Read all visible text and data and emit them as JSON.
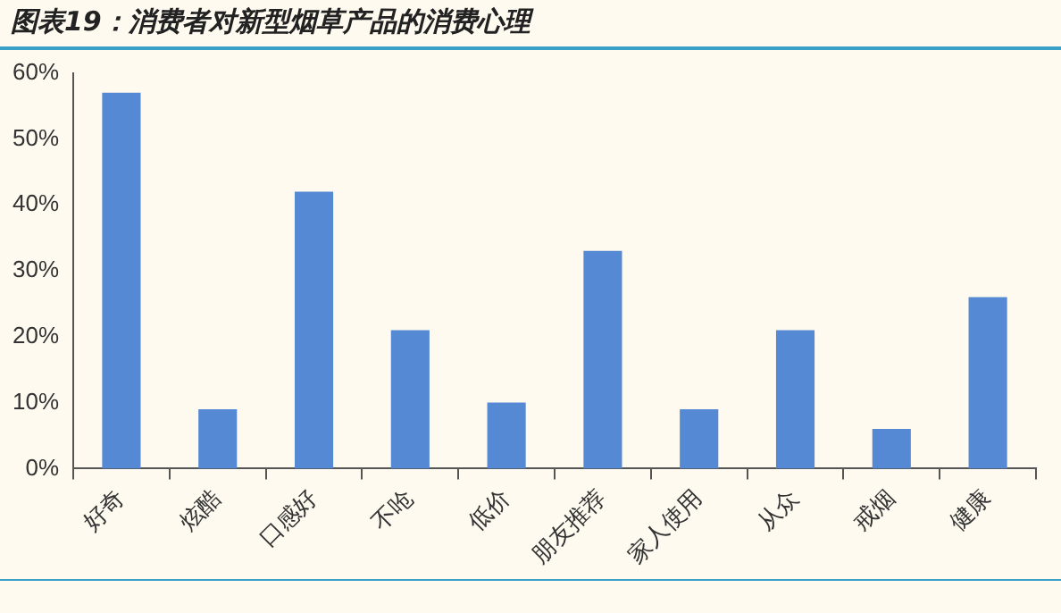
{
  "chart_data": {
    "type": "bar",
    "title": "图表19：消费者对新型烟草产品的消费心理",
    "categories": [
      "好奇",
      "炫酷",
      "口感好",
      "不呛",
      "低价",
      "朋友推荐",
      "家人使用",
      "从众",
      "戒烟",
      "健康"
    ],
    "values": [
      57,
      9,
      42,
      21,
      10,
      33,
      9,
      21,
      6,
      26
    ],
    "color": "#5589d4",
    "ylim": [
      0,
      60
    ],
    "yticks": [
      {
        "value": 0,
        "label": "0%"
      },
      {
        "value": 10,
        "label": "10%"
      },
      {
        "value": 20,
        "label": "20%"
      },
      {
        "value": 30,
        "label": "30%"
      },
      {
        "value": 40,
        "label": "40%"
      },
      {
        "value": 50,
        "label": "50%"
      },
      {
        "value": 60,
        "label": "60%"
      }
    ],
    "grid": false,
    "legend": false
  }
}
